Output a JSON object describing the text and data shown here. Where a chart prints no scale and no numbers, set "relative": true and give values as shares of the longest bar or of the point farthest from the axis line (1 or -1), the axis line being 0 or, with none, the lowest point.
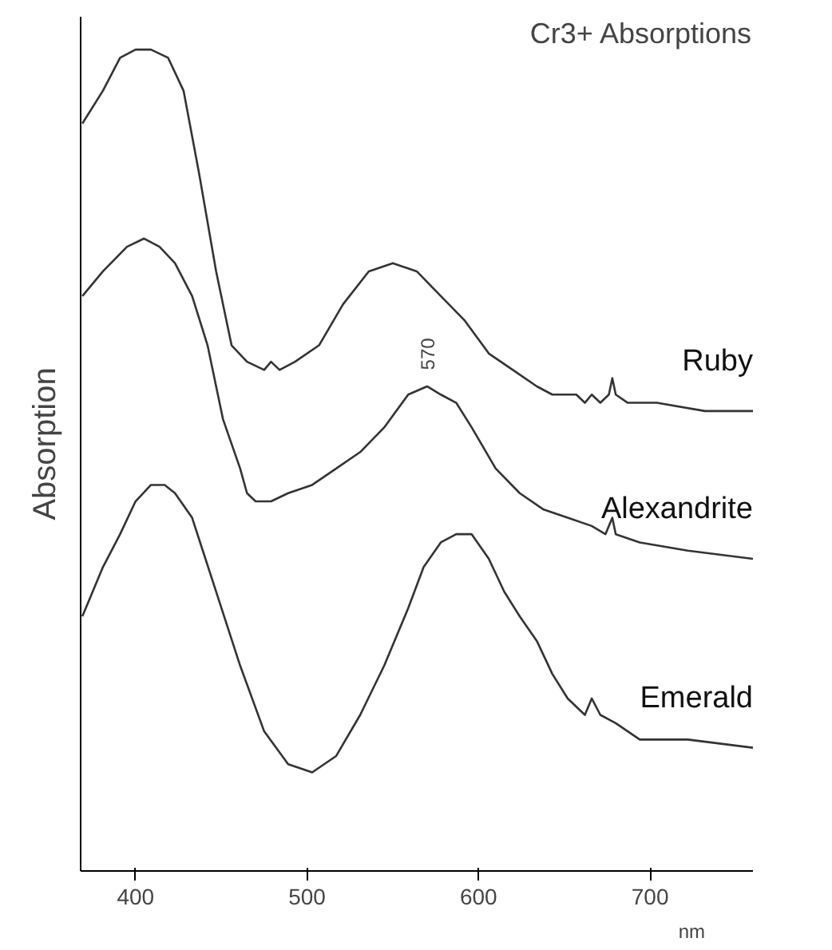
{
  "chart_data": {
    "type": "line",
    "title": "Cr3+ Absorptions",
    "xlabel": "nm",
    "ylabel": "Absorption",
    "relative": true,
    "xlim": [
      368,
      760
    ],
    "xticks": [
      400,
      500,
      600,
      700
    ],
    "grid": false,
    "marker": "none",
    "line_style": "solid",
    "annotations": [
      {
        "text": "570",
        "x": 570,
        "y": 0.59
      }
    ],
    "series": [
      {
        "name": "Ruby",
        "color": "#333333",
        "x": [
          369,
          381,
          391,
          400,
          409,
          419,
          428,
          437,
          447,
          456,
          465,
          475,
          479,
          484,
          493,
          507,
          521,
          536,
          550,
          564,
          578,
          592,
          606,
          620,
          634,
          643,
          652,
          657,
          662,
          666,
          671,
          676,
          678,
          680,
          687,
          704,
          732,
          760
        ],
        "values": [
          0.91,
          0.95,
          0.99,
          1.0,
          1.0,
          0.99,
          0.95,
          0.85,
          0.73,
          0.64,
          0.62,
          0.61,
          0.62,
          0.61,
          0.62,
          0.64,
          0.69,
          0.73,
          0.74,
          0.73,
          0.7,
          0.67,
          0.63,
          0.61,
          0.59,
          0.58,
          0.58,
          0.58,
          0.57,
          0.58,
          0.57,
          0.58,
          0.6,
          0.58,
          0.57,
          0.57,
          0.56,
          0.56
        ]
      },
      {
        "name": "Alexandrite",
        "color": "#333333",
        "x": [
          369,
          381,
          395,
          405,
          414,
          423,
          433,
          442,
          451,
          461,
          465,
          470,
          479,
          489,
          503,
          517,
          531,
          545,
          559,
          570,
          578,
          587,
          596,
          610,
          624,
          638,
          652,
          666,
          674,
          678,
          680,
          694,
          722,
          760
        ],
        "values": [
          0.7,
          0.73,
          0.76,
          0.77,
          0.76,
          0.74,
          0.7,
          0.64,
          0.55,
          0.49,
          0.46,
          0.45,
          0.45,
          0.46,
          0.47,
          0.49,
          0.51,
          0.54,
          0.58,
          0.59,
          0.58,
          0.57,
          0.54,
          0.49,
          0.46,
          0.44,
          0.43,
          0.42,
          0.41,
          0.43,
          0.41,
          0.4,
          0.39,
          0.38
        ]
      },
      {
        "name": "Emerald",
        "color": "#333333",
        "x": [
          369,
          381,
          391,
          400,
          409,
          417,
          423,
          433,
          447,
          461,
          475,
          489,
          503,
          517,
          531,
          545,
          559,
          568,
          578,
          587,
          596,
          606,
          615,
          624,
          634,
          643,
          652,
          662,
          666,
          671,
          680,
          694,
          722,
          760
        ],
        "values": [
          0.31,
          0.37,
          0.41,
          0.45,
          0.47,
          0.47,
          0.46,
          0.43,
          0.34,
          0.25,
          0.17,
          0.13,
          0.12,
          0.14,
          0.19,
          0.25,
          0.32,
          0.37,
          0.4,
          0.41,
          0.41,
          0.38,
          0.34,
          0.31,
          0.28,
          0.24,
          0.21,
          0.19,
          0.21,
          0.19,
          0.18,
          0.16,
          0.16,
          0.15
        ]
      }
    ]
  }
}
